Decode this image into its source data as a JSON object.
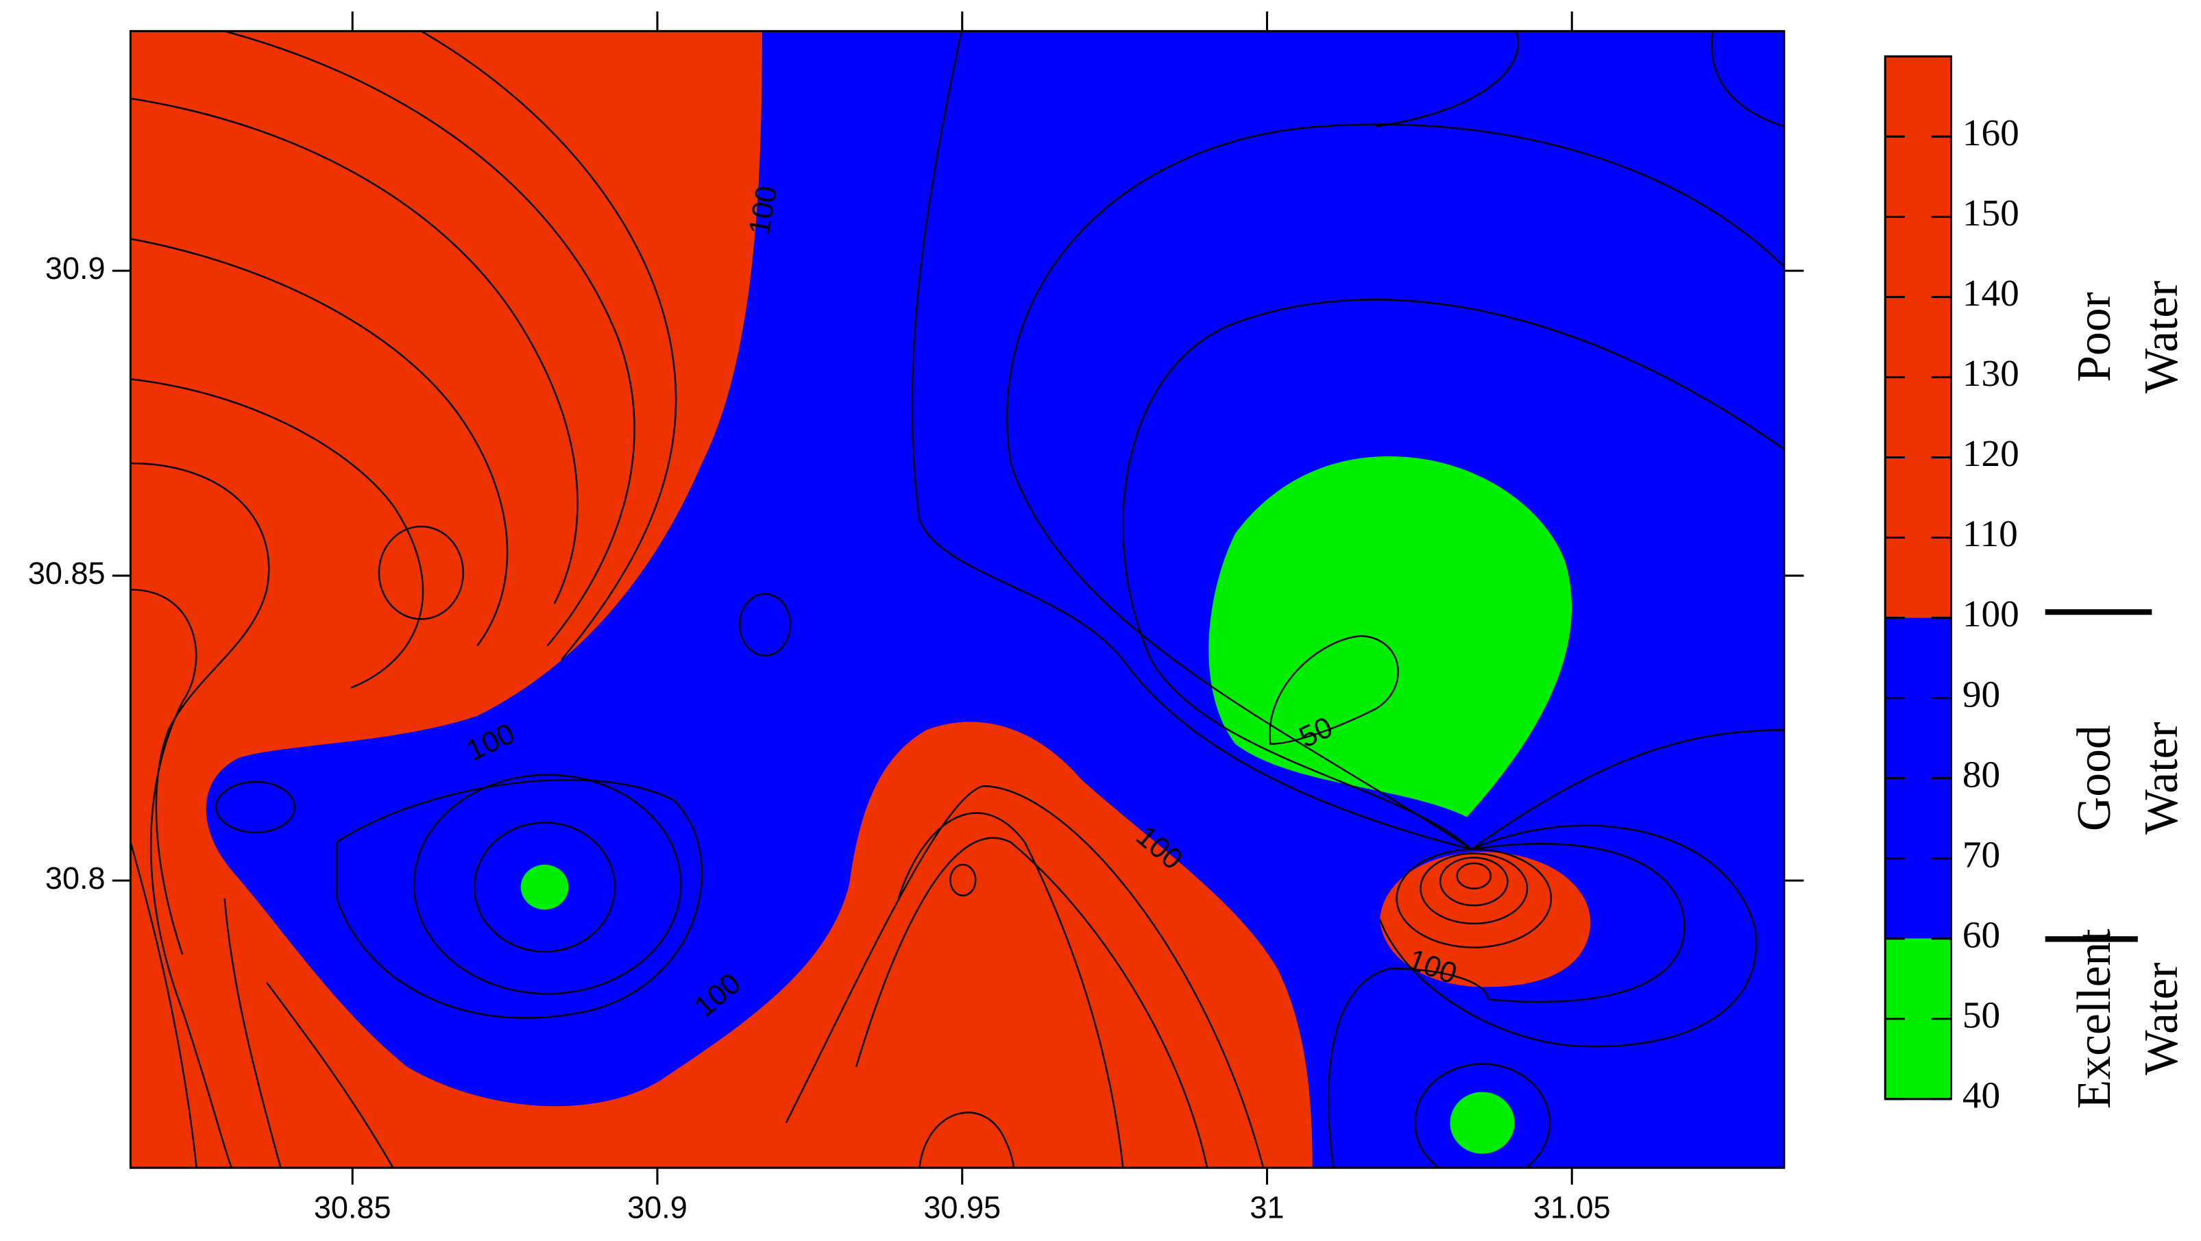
{
  "chart_data": {
    "type": "contour",
    "xlim": [
      30.8136,
      31.0848
    ],
    "xticks": [
      30.85,
      30.9,
      30.95,
      31,
      31.05
    ],
    "ylim": [
      30.7529,
      30.9393
    ],
    "yticks": [
      30.8,
      30.85,
      30.9
    ],
    "colorbar": {
      "lim": [
        40,
        170
      ],
      "ticks": [
        40,
        50,
        60,
        70,
        80,
        90,
        100,
        110,
        120,
        130,
        140,
        150,
        160
      ]
    },
    "zones": [
      {
        "label": [
          "Poor",
          "Water"
        ],
        "range": [
          100,
          170
        ],
        "color": "#ee3300"
      },
      {
        "label": [
          "Good",
          "Water"
        ],
        "range": [
          60,
          100
        ],
        "color": "#0000ff"
      },
      {
        "label": [
          "Excellent",
          "Water"
        ],
        "range": [
          40,
          60
        ],
        "color": "#00ee00"
      }
    ],
    "contour_labels": [
      100,
      100,
      100,
      100,
      100,
      50
    ]
  }
}
